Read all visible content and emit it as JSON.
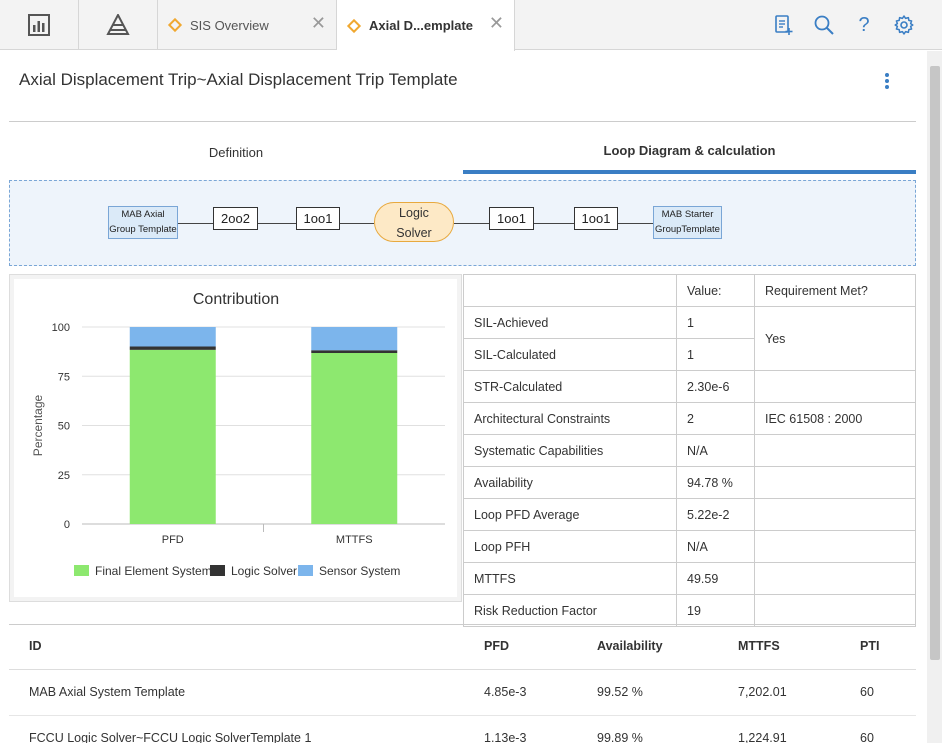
{
  "topbar": {
    "tabs": [
      {
        "label": "SIS Overview"
      },
      {
        "label": "Axial D...emplate"
      }
    ]
  },
  "page": {
    "title": "Axial Displacement Trip~Axial Displacement Trip Template"
  },
  "subtabs": [
    {
      "label": "Definition"
    },
    {
      "label": "Loop Diagram & calculation"
    }
  ],
  "diagram": {
    "input_group": [
      "MAB Axial",
      "Group Template"
    ],
    "input_voting": "2oo2",
    "sensor_voting": "1oo1",
    "solver": [
      "Logic",
      "Solver"
    ],
    "final_voting": "1oo1",
    "output_voting": "1oo1",
    "output_group": [
      "MAB Starter",
      "GroupTemplate"
    ]
  },
  "chart_data": {
    "type": "bar",
    "stacked": true,
    "title": "Contribution",
    "xlabel": "",
    "ylabel": "Percentage",
    "ylim": [
      0,
      100
    ],
    "yticks": [
      0,
      25,
      50,
      75,
      100
    ],
    "categories": [
      "PFD",
      "MTTFS"
    ],
    "series": [
      {
        "name": "Final Element System",
        "color": "#8de86f",
        "values": [
          88.4,
          86.8
        ]
      },
      {
        "name": "Logic Solver",
        "color": "#333333",
        "values": [
          1.7,
          1.4
        ]
      },
      {
        "name": "Sensor System",
        "color": "#7cb5ec",
        "values": [
          9.9,
          11.8
        ]
      }
    ],
    "legend_position": "bottom",
    "grid": true
  },
  "stats": {
    "header": {
      "value": "Value:",
      "requirement": "Requirement Met?"
    },
    "rows": [
      {
        "label": "SIL-Achieved",
        "value": "1",
        "requirement": "Yes"
      },
      {
        "label": "SIL-Calculated",
        "value": "1"
      },
      {
        "label": "STR-Calculated",
        "value": "2.30e-6",
        "requirement": ""
      },
      {
        "label": "Architectural Constraints",
        "value": "2",
        "requirement": "IEC 61508 : 2000"
      },
      {
        "label": "Systematic Capabilities",
        "value": "N/A",
        "requirement": ""
      },
      {
        "label": "Availability",
        "value": "94.78 %",
        "requirement": ""
      },
      {
        "label": "Loop PFD Average",
        "value": "5.22e-2"
      },
      {
        "label": "Loop PFH",
        "value": "N/A"
      },
      {
        "label": "MTTFS",
        "value": "49.59"
      },
      {
        "label": "Risk Reduction Factor",
        "value": "19"
      }
    ]
  },
  "list": {
    "columns": {
      "id": "ID",
      "pfd": "PFD",
      "availability": "Availability",
      "mttfs": "MTTFS",
      "pti": "PTI"
    },
    "rows": [
      {
        "id": "MAB Axial System Template",
        "pfd": "4.85e-3",
        "availability": "99.52 %",
        "mttfs": "7,202.01",
        "pti": "60"
      },
      {
        "id": "FCCU Logic Solver~FCCU Logic SolverTemplate 1",
        "pfd": "1.13e-3",
        "availability": "99.89 %",
        "mttfs": "1,224.91",
        "pti": "60"
      }
    ]
  }
}
